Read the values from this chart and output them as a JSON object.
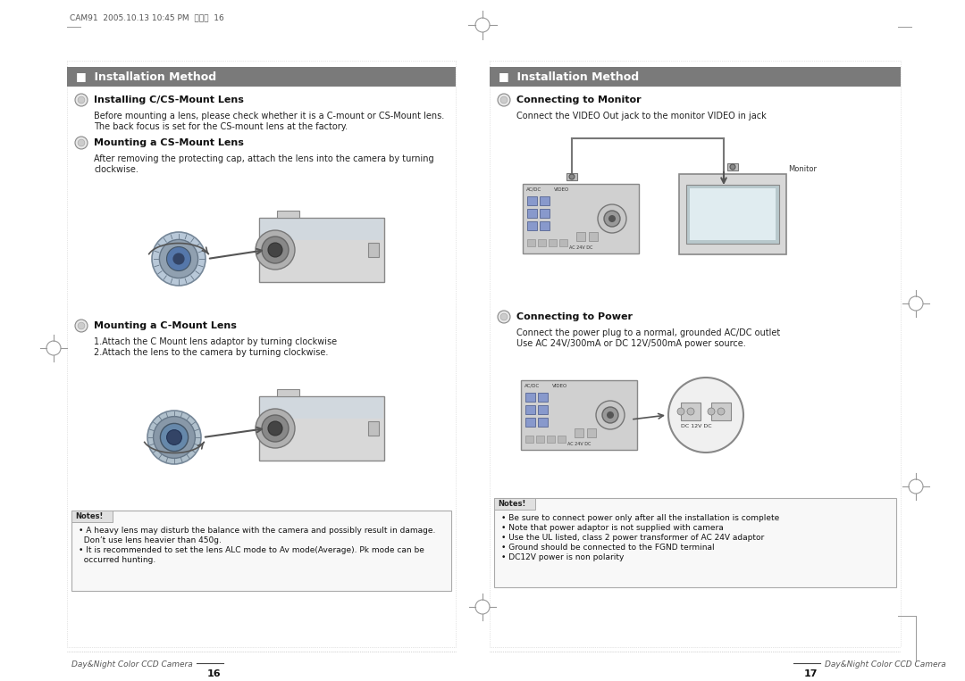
{
  "page_bg": "#ffffff",
  "header_bg": "#7a7a7a",
  "header_text_color": "#ffffff",
  "body_text_color": "#111111",
  "border_color": "#cccccc",
  "section_title": "Installation Method",
  "left_s1_title": "Installing C/CS-Mount Lens",
  "left_s1_body1": "Before mounting a lens, please check whether it is a C-mount or CS-Mount lens.",
  "left_s1_body2": "The back focus is set for the CS-mount lens at the factory.",
  "left_s2_title": "Mounting a CS-Mount Lens",
  "left_s2_body1": "After removing the protecting cap, attach the lens into the camera by turning",
  "left_s2_body2": "clockwise.",
  "left_s3_title": "Mounting a C-Mount Lens",
  "left_s3_body1": "1.Attach the C Mount lens adaptor by turning clockwise",
  "left_s3_body2": "2.Attach the lens to the camera by turning clockwise.",
  "left_notes": [
    "• A heavy lens may disturb the balance with the camera and possibly result in damage.",
    "  Don’t use lens heavier than 450g.",
    "• It is recommended to set the lens ALC mode to Av mode(Average). Pk mode can be",
    "  occurred hunting."
  ],
  "right_s1_title": "Connecting to Monitor",
  "right_s1_body": "Connect the VIDEO Out jack to the monitor VIDEO in jack",
  "right_s2_title": "Connecting to Power",
  "right_s2_body1": "Connect the power plug to a normal, grounded AC/DC outlet",
  "right_s2_body2": "Use AC 24V/300mA or DC 12V/500mA power source.",
  "right_notes": [
    "• Be sure to connect power only after all the installation is complete",
    "• Note that power adaptor is not supplied with camera",
    "• Use the UL listed, class 2 power transformer of AC 24V adaptor",
    "• Ground should be connected to the FGND terminal",
    "• DC12V power is non polarity"
  ],
  "footer_left": "Day&Night Color CCD Camera",
  "footer_left_page": "16",
  "footer_right_page": "17",
  "footer_right": "Day&Night Color CCD Camera",
  "top_header_text": "CAM91  2005.10.13 10:45 PM  페이지  16",
  "monitor_label": "Monitor"
}
